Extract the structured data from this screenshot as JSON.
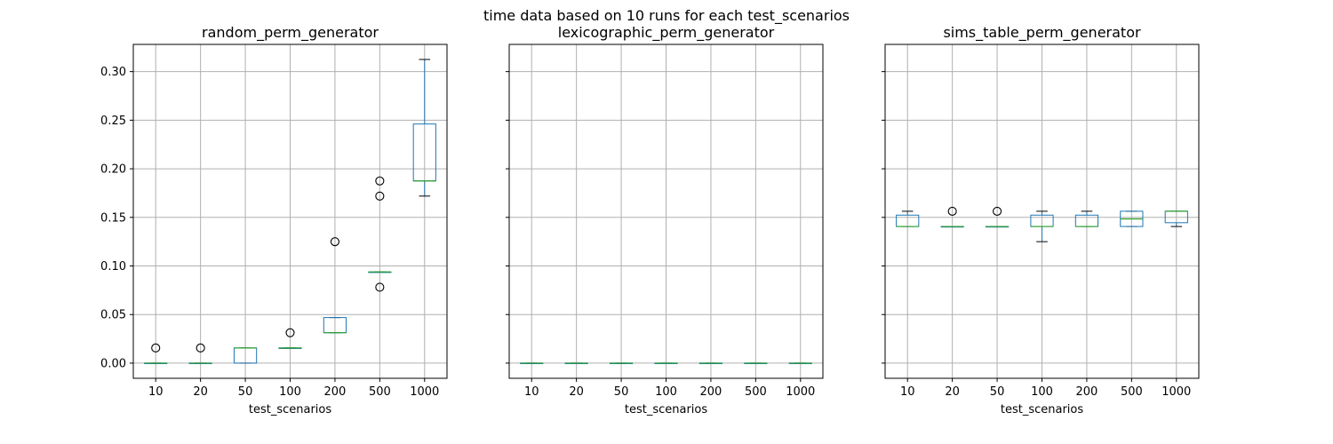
{
  "figure": {
    "suptitle": "time data based on 10 runs for each test_scenarios"
  },
  "colors": {
    "box": "#1f77b4",
    "median": "#2ca02c",
    "whisker": "#000000",
    "grid": "#b0b0b0",
    "outlier_edge": "#000000"
  },
  "chart_data": [
    {
      "type": "box",
      "title": "random_perm_generator",
      "xlabel": "test_scenarios",
      "ylabel": "",
      "categories": [
        "10",
        "20",
        "50",
        "100",
        "200",
        "500",
        "1000"
      ],
      "ylim": [
        -0.0156,
        0.328
      ],
      "yticks": [
        0.0,
        0.05,
        0.1,
        0.15,
        0.2,
        0.25,
        0.3
      ],
      "ytick_labels": [
        "0.00",
        "0.05",
        "0.10",
        "0.15",
        "0.20",
        "0.25",
        "0.30"
      ],
      "show_ytick_labels": true,
      "grid": true,
      "boxes": [
        {
          "whislo": 0.0,
          "q1": 0.0,
          "med": 0.0,
          "q3": 0.0,
          "whishi": 0.0,
          "fliers": [
            0.0156
          ]
        },
        {
          "whislo": 0.0,
          "q1": 0.0,
          "med": 0.0,
          "q3": 0.0,
          "whishi": 0.0,
          "fliers": [
            0.0156
          ]
        },
        {
          "whislo": 0.0,
          "q1": 0.0,
          "med": 0.0156,
          "q3": 0.0156,
          "whishi": 0.0156,
          "fliers": []
        },
        {
          "whislo": 0.0156,
          "q1": 0.0156,
          "med": 0.0156,
          "q3": 0.0156,
          "whishi": 0.0156,
          "fliers": [
            0.0313
          ]
        },
        {
          "whislo": 0.0313,
          "q1": 0.0313,
          "med": 0.0313,
          "q3": 0.0469,
          "whishi": 0.0469,
          "fliers": [
            0.125
          ]
        },
        {
          "whislo": 0.0938,
          "q1": 0.0938,
          "med": 0.0938,
          "q3": 0.0938,
          "whishi": 0.0938,
          "fliers": [
            0.0781,
            0.1719,
            0.1875
          ]
        },
        {
          "whislo": 0.1719,
          "q1": 0.1875,
          "med": 0.1875,
          "q3": 0.2461,
          "whishi": 0.3125,
          "fliers": []
        }
      ]
    },
    {
      "type": "box",
      "title": "lexicographic_perm_generator",
      "xlabel": "test_scenarios",
      "ylabel": "",
      "categories": [
        "10",
        "20",
        "50",
        "100",
        "200",
        "500",
        "1000"
      ],
      "ylim": [
        -0.0156,
        0.328
      ],
      "yticks": [
        0.0,
        0.05,
        0.1,
        0.15,
        0.2,
        0.25,
        0.3
      ],
      "show_ytick_labels": false,
      "grid": true,
      "boxes": [
        {
          "whislo": 0.0,
          "q1": 0.0,
          "med": 0.0,
          "q3": 0.0,
          "whishi": 0.0,
          "fliers": []
        },
        {
          "whislo": 0.0,
          "q1": 0.0,
          "med": 0.0,
          "q3": 0.0,
          "whishi": 0.0,
          "fliers": []
        },
        {
          "whislo": 0.0,
          "q1": 0.0,
          "med": 0.0,
          "q3": 0.0,
          "whishi": 0.0,
          "fliers": []
        },
        {
          "whislo": 0.0,
          "q1": 0.0,
          "med": 0.0,
          "q3": 0.0,
          "whishi": 0.0,
          "fliers": []
        },
        {
          "whislo": 0.0,
          "q1": 0.0,
          "med": 0.0,
          "q3": 0.0,
          "whishi": 0.0,
          "fliers": []
        },
        {
          "whislo": 0.0,
          "q1": 0.0,
          "med": 0.0,
          "q3": 0.0,
          "whishi": 0.0,
          "fliers": []
        },
        {
          "whislo": 0.0,
          "q1": 0.0,
          "med": 0.0,
          "q3": 0.0,
          "whishi": 0.0,
          "fliers": []
        }
      ]
    },
    {
      "type": "box",
      "title": "sims_table_perm_generator",
      "xlabel": "test_scenarios",
      "ylabel": "",
      "categories": [
        "10",
        "20",
        "50",
        "100",
        "200",
        "500",
        "1000"
      ],
      "ylim": [
        -0.0156,
        0.328
      ],
      "yticks": [
        0.0,
        0.05,
        0.1,
        0.15,
        0.2,
        0.25,
        0.3
      ],
      "show_ytick_labels": false,
      "grid": true,
      "boxes": [
        {
          "whislo": 0.1406,
          "q1": 0.1406,
          "med": 0.1406,
          "q3": 0.1523,
          "whishi": 0.1563,
          "fliers": []
        },
        {
          "whislo": 0.1406,
          "q1": 0.1406,
          "med": 0.1406,
          "q3": 0.1406,
          "whishi": 0.1406,
          "fliers": [
            0.1563
          ]
        },
        {
          "whislo": 0.1406,
          "q1": 0.1406,
          "med": 0.1406,
          "q3": 0.1406,
          "whishi": 0.1406,
          "fliers": [
            0.1563
          ]
        },
        {
          "whislo": 0.125,
          "q1": 0.1406,
          "med": 0.1406,
          "q3": 0.1523,
          "whishi": 0.1563,
          "fliers": []
        },
        {
          "whislo": 0.1406,
          "q1": 0.1406,
          "med": 0.1406,
          "q3": 0.1523,
          "whishi": 0.1563,
          "fliers": []
        },
        {
          "whislo": 0.1406,
          "q1": 0.1406,
          "med": 0.1484,
          "q3": 0.1563,
          "whishi": 0.1563,
          "fliers": []
        },
        {
          "whislo": 0.1406,
          "q1": 0.1445,
          "med": 0.1563,
          "q3": 0.1563,
          "whishi": 0.1563,
          "fliers": []
        }
      ]
    }
  ]
}
